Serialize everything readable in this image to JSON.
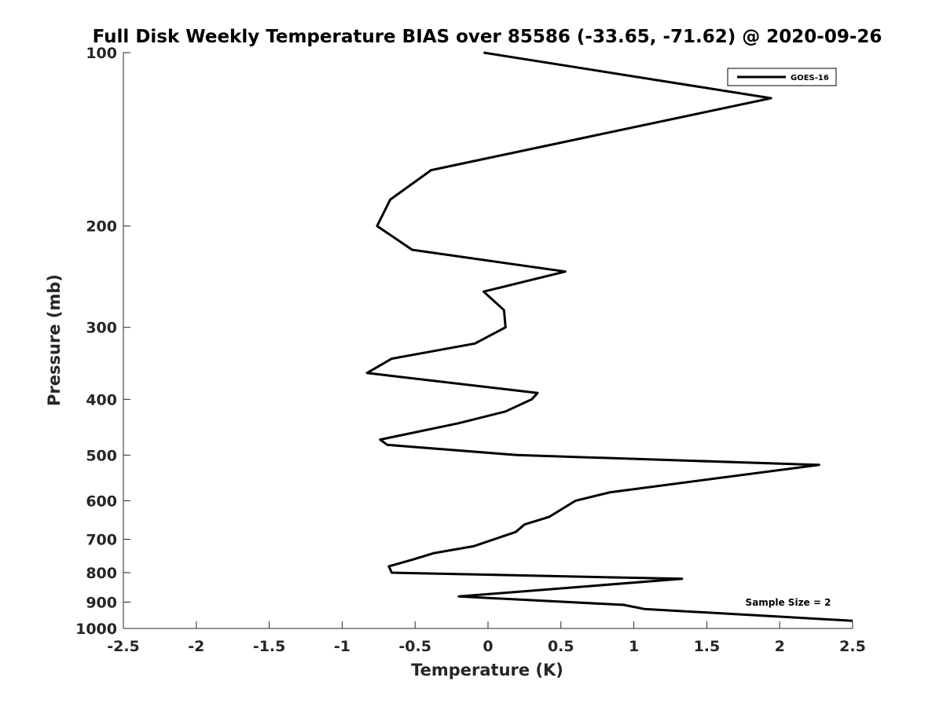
{
  "chart_data": {
    "type": "line",
    "title": "Full Disk Weekly Temperature BIAS over 85586 (-33.65, -71.62) @ 2020-09-26",
    "xlabel": "Temperature (K)",
    "ylabel": "Pressure (mb)",
    "xlim": [
      -2.5,
      2.5
    ],
    "ylim": [
      100,
      1000
    ],
    "y_scale": "log",
    "y_reversed": true,
    "x_ticks": [
      -2.5,
      -2,
      -1.5,
      -1,
      -0.5,
      0,
      0.5,
      1,
      1.5,
      2,
      2.5
    ],
    "x_tick_labels": [
      "-2.5",
      "-2",
      "-1.5",
      "-1",
      "-0.5",
      "0",
      "0.5",
      "1",
      "1.5",
      "2",
      "2.5"
    ],
    "y_ticks": [
      100,
      200,
      300,
      400,
      500,
      600,
      700,
      800,
      900,
      1000
    ],
    "y_tick_labels": [
      "100",
      "200",
      "300",
      "400",
      "500",
      "600",
      "700",
      "800",
      "900",
      "1000"
    ],
    "grid": false,
    "legend_position": "top-right",
    "annotation": "Sample Size = 2",
    "line_color": "#000000",
    "series": [
      {
        "name": "GOES-16",
        "points": [
          {
            "x": -0.03,
            "y": 100
          },
          {
            "x": 1.94,
            "y": 120
          },
          {
            "x": -0.39,
            "y": 160
          },
          {
            "x": -0.67,
            "y": 180
          },
          {
            "x": -0.76,
            "y": 200
          },
          {
            "x": -0.52,
            "y": 220
          },
          {
            "x": 0.53,
            "y": 240
          },
          {
            "x": -0.03,
            "y": 260
          },
          {
            "x": 0.11,
            "y": 280
          },
          {
            "x": 0.12,
            "y": 300
          },
          {
            "x": -0.09,
            "y": 320
          },
          {
            "x": -0.66,
            "y": 340
          },
          {
            "x": -0.83,
            "y": 360
          },
          {
            "x": 0.34,
            "y": 390
          },
          {
            "x": 0.3,
            "y": 400
          },
          {
            "x": 0.12,
            "y": 420
          },
          {
            "x": -0.2,
            "y": 440
          },
          {
            "x": -0.74,
            "y": 470
          },
          {
            "x": -0.69,
            "y": 480
          },
          {
            "x": 0.2,
            "y": 500
          },
          {
            "x": 2.27,
            "y": 520
          },
          {
            "x": 0.84,
            "y": 580
          },
          {
            "x": 0.6,
            "y": 600
          },
          {
            "x": 0.42,
            "y": 640
          },
          {
            "x": 0.25,
            "y": 660
          },
          {
            "x": 0.19,
            "y": 680
          },
          {
            "x": -0.1,
            "y": 720
          },
          {
            "x": -0.37,
            "y": 740
          },
          {
            "x": -0.52,
            "y": 760
          },
          {
            "x": -0.68,
            "y": 780
          },
          {
            "x": -0.66,
            "y": 800
          },
          {
            "x": 1.33,
            "y": 820
          },
          {
            "x": -0.2,
            "y": 880
          },
          {
            "x": 0.93,
            "y": 910
          },
          {
            "x": 1.07,
            "y": 925
          },
          {
            "x": 2.5,
            "y": 970
          }
        ]
      }
    ]
  }
}
